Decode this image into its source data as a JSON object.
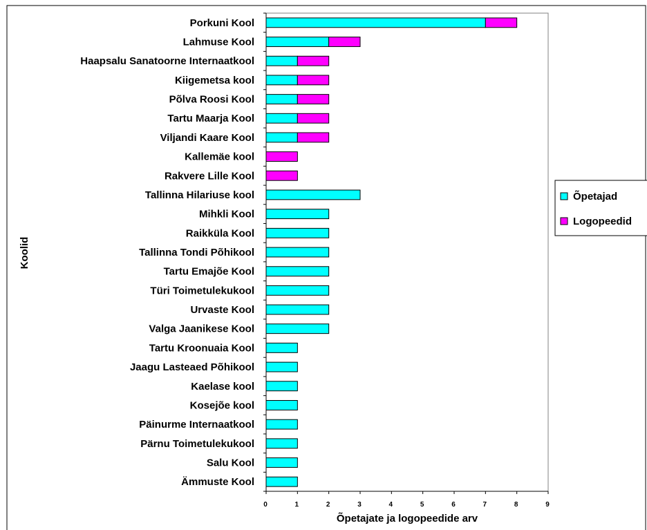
{
  "chart_data": {
    "type": "bar",
    "orientation": "horizontal",
    "stacked": true,
    "categories": [
      "Porkuni Kool",
      "Lahmuse Kool",
      "Haapsalu Sanatoorne Internaatkool",
      "Kiigemetsa kool",
      "Põlva Roosi Kool",
      "Tartu Maarja Kool",
      "Viljandi Kaare Kool",
      "Kallemäe kool",
      "Rakvere Lille Kool",
      "Tallinna Hilariuse kool",
      "Mihkli Kool",
      "Raikküla Kool",
      "Tallinna Tondi Põhikool",
      "Tartu Emajõe Kool",
      "Türi Toimetulekukool",
      "Urvaste Kool",
      "Valga Jaanikese Kool",
      "Tartu Kroonuaia Kool",
      "Jaagu Lasteaed Põhikool",
      "Kaelase kool",
      "Kosejõe kool",
      "Päinurme Internaatkool",
      "Pärnu Toimetulekukool",
      "Salu Kool",
      "Ämmuste Kool"
    ],
    "series": [
      {
        "name": "Õpetajad",
        "color": "#00ffff",
        "values": [
          7,
          2,
          1,
          1,
          1,
          1,
          1,
          0,
          0,
          3,
          2,
          2,
          2,
          2,
          2,
          2,
          2,
          1,
          1,
          1,
          1,
          1,
          1,
          1,
          1
        ]
      },
      {
        "name": "Logopeedid",
        "color": "#ff00ff",
        "values": [
          1,
          1,
          1,
          1,
          1,
          1,
          1,
          1,
          1,
          0,
          0,
          0,
          0,
          0,
          0,
          0,
          0,
          0,
          0,
          0,
          0,
          0,
          0,
          0,
          0
        ]
      }
    ],
    "xlabel": "Õpetajate ja logopeedide arv",
    "ylabel": "Koolid",
    "xlim": [
      0,
      9
    ],
    "xticks": [
      "0",
      "1",
      "2",
      "3",
      "4",
      "5",
      "6",
      "7",
      "8",
      "9"
    ],
    "grid": false,
    "legend_position": "right"
  }
}
